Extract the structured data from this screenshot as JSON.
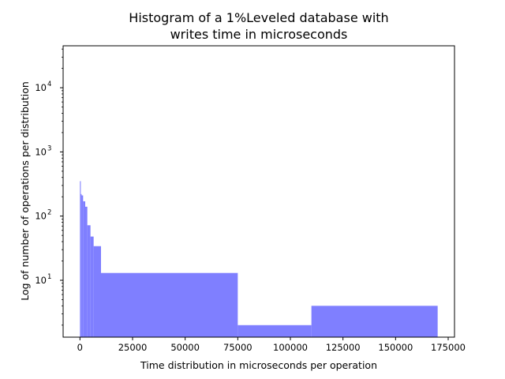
{
  "chart_data": {
    "type": "bar",
    "title": [
      "Histogram of a 1%Leveled database with",
      "writes time in microseconds"
    ],
    "xlabel": "Time distribution in microseconds per operation",
    "ylabel": "Log of number of operations per distribution",
    "xlim": [
      -8000,
      178000
    ],
    "ylim": [
      1.3,
      45000
    ],
    "yscale": "log",
    "color": "#7f7fff",
    "bins": [
      {
        "x0": 0,
        "x1": 400,
        "count": 350
      },
      {
        "x0": 400,
        "x1": 800,
        "count": 220
      },
      {
        "x0": 800,
        "x1": 1500,
        "count": 210
      },
      {
        "x0": 1500,
        "x1": 2500,
        "count": 170
      },
      {
        "x0": 2500,
        "x1": 3500,
        "count": 140
      },
      {
        "x0": 3500,
        "x1": 5000,
        "count": 72
      },
      {
        "x0": 5000,
        "x1": 6500,
        "count": 48
      },
      {
        "x0": 6500,
        "x1": 10000,
        "count": 34
      },
      {
        "x0": 10000,
        "x1": 75000,
        "count": 13
      },
      {
        "x0": 75000,
        "x1": 110000,
        "count": 2
      },
      {
        "x0": 110000,
        "x1": 170000,
        "count": 4
      }
    ],
    "x_ticks": [
      {
        "value": 0,
        "label": "0"
      },
      {
        "value": 25000,
        "label": "25000"
      },
      {
        "value": 50000,
        "label": "50000"
      },
      {
        "value": 75000,
        "label": "75000"
      },
      {
        "value": 100000,
        "label": "100000"
      },
      {
        "value": 125000,
        "label": "125000"
      },
      {
        "value": 150000,
        "label": "150000"
      },
      {
        "value": 175000,
        "label": "175000"
      }
    ],
    "y_ticks": [
      {
        "value": 10,
        "base": "10",
        "exp": "1"
      },
      {
        "value": 100,
        "base": "10",
        "exp": "2"
      },
      {
        "value": 1000,
        "base": "10",
        "exp": "3"
      },
      {
        "value": 10000,
        "base": "10",
        "exp": "4"
      }
    ],
    "grid": false,
    "legend": "none"
  }
}
